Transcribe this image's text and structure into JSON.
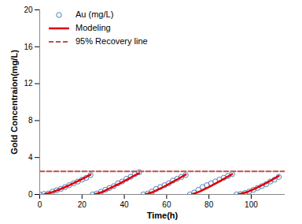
{
  "chart_data": {
    "type": "scatter",
    "x_label": "Time(h)",
    "y_label": "Gold Concentraion(mg/L)",
    "xlim": [
      0,
      116
    ],
    "xticks": [
      0,
      20,
      40,
      60,
      80,
      100
    ],
    "ylim": [
      0,
      20
    ],
    "yticks": [
      0,
      4,
      8,
      12,
      16,
      20
    ],
    "grid": false,
    "legend": "top-left",
    "series": [
      {
        "name": "Au (mg/L)",
        "type": "scatter",
        "marker": "circle",
        "color": "#4f81bd",
        "x": [
          0,
          2,
          4,
          6,
          8,
          10,
          12,
          14,
          16,
          18,
          20,
          22,
          24,
          25,
          27,
          29,
          31,
          33,
          35,
          37,
          39,
          41,
          43,
          45,
          47,
          49,
          51,
          53,
          55,
          57,
          59,
          61,
          63,
          65,
          67,
          69,
          71,
          73,
          75,
          77,
          79,
          81,
          83,
          85,
          87,
          89,
          91,
          93,
          95,
          97,
          99,
          101,
          103,
          105,
          107,
          109,
          111,
          113
        ],
        "values": [
          0,
          0.05,
          0.1,
          0.3,
          0.45,
          0.6,
          0.8,
          1.0,
          1.2,
          1.4,
          1.6,
          1.8,
          2.1,
          0,
          0.1,
          0.3,
          0.5,
          0.7,
          0.9,
          1.2,
          1.4,
          1.7,
          1.9,
          2.2,
          2.4,
          0,
          0.1,
          0.3,
          0.6,
          0.8,
          1.0,
          1.2,
          1.5,
          1.7,
          1.9,
          2.1,
          0,
          0.2,
          0.5,
          0.8,
          1.0,
          1.2,
          1.4,
          1.6,
          1.8,
          2.0,
          2.2,
          0,
          0.05,
          0.15,
          0.3,
          0.5,
          0.7,
          0.9,
          1.1,
          1.4,
          1.6,
          1.9
        ]
      },
      {
        "name": "Modeling",
        "type": "line",
        "line_style": "solid",
        "color": "#e00000",
        "x": [
          2,
          6,
          10,
          14,
          18,
          22,
          24,
          24.5,
          26,
          30,
          34,
          38,
          42,
          46,
          47,
          48,
          50,
          54,
          58,
          62,
          66,
          69,
          70,
          72,
          76,
          80,
          84,
          88,
          91,
          92,
          94,
          98,
          102,
          106,
          110,
          113
        ],
        "values": [
          0,
          0.25,
          0.6,
          1.0,
          1.45,
          1.9,
          2.15,
          null,
          0,
          0.3,
          0.75,
          1.2,
          1.7,
          2.2,
          2.3,
          null,
          0,
          0.3,
          0.75,
          1.25,
          1.75,
          2.15,
          null,
          0,
          0.35,
          0.8,
          1.3,
          1.8,
          2.2,
          null,
          0,
          0.25,
          0.65,
          1.1,
          1.6,
          2.0
        ]
      },
      {
        "name": "95% Recovery line",
        "type": "line",
        "line_style": "dashed",
        "color": "#c0504d",
        "x": [
          0,
          116
        ],
        "values": [
          2.5,
          2.5
        ]
      }
    ]
  }
}
